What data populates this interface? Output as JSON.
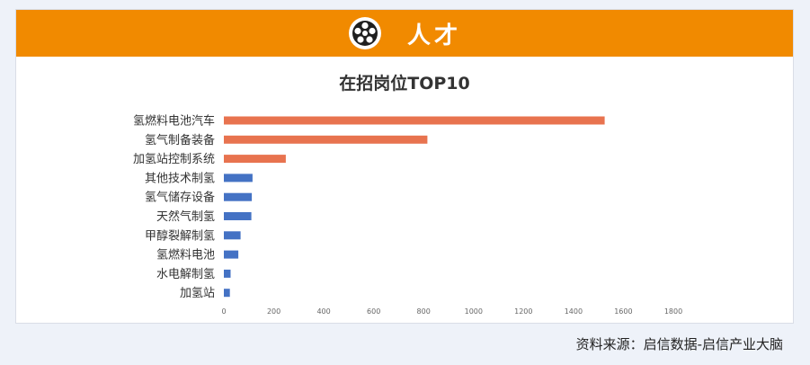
{
  "banner": {
    "title": "人才",
    "icon": "film-reel-icon",
    "color": "#f18a00"
  },
  "chart_data": {
    "type": "bar",
    "orientation": "horizontal",
    "title": "在招岗位TOP10",
    "categories": [
      "氢燃料电池汽车",
      "氢气制备装备",
      "加氢站控制系统",
      "其他技术制氢",
      "氢气储存设备",
      "天然气制氢",
      "甲醇裂解制氢",
      "氢燃料电池",
      "水电解制氢",
      "加氢站"
    ],
    "values": [
      1525,
      815,
      248,
      115,
      112,
      110,
      67,
      58,
      27,
      24
    ],
    "bar_colors": [
      "#e8734f",
      "#e8734f",
      "#e8734f",
      "#4472c4",
      "#4472c4",
      "#4472c4",
      "#4472c4",
      "#4472c4",
      "#4472c4",
      "#4472c4"
    ],
    "xticks": [
      0,
      200,
      400,
      600,
      800,
      1000,
      1200,
      1400,
      1600,
      1800
    ],
    "xlim": [
      0,
      1800
    ],
    "grid": false,
    "xlabel": "",
    "ylabel": ""
  },
  "source": "资料来源：启信数据-启信产业大脑"
}
